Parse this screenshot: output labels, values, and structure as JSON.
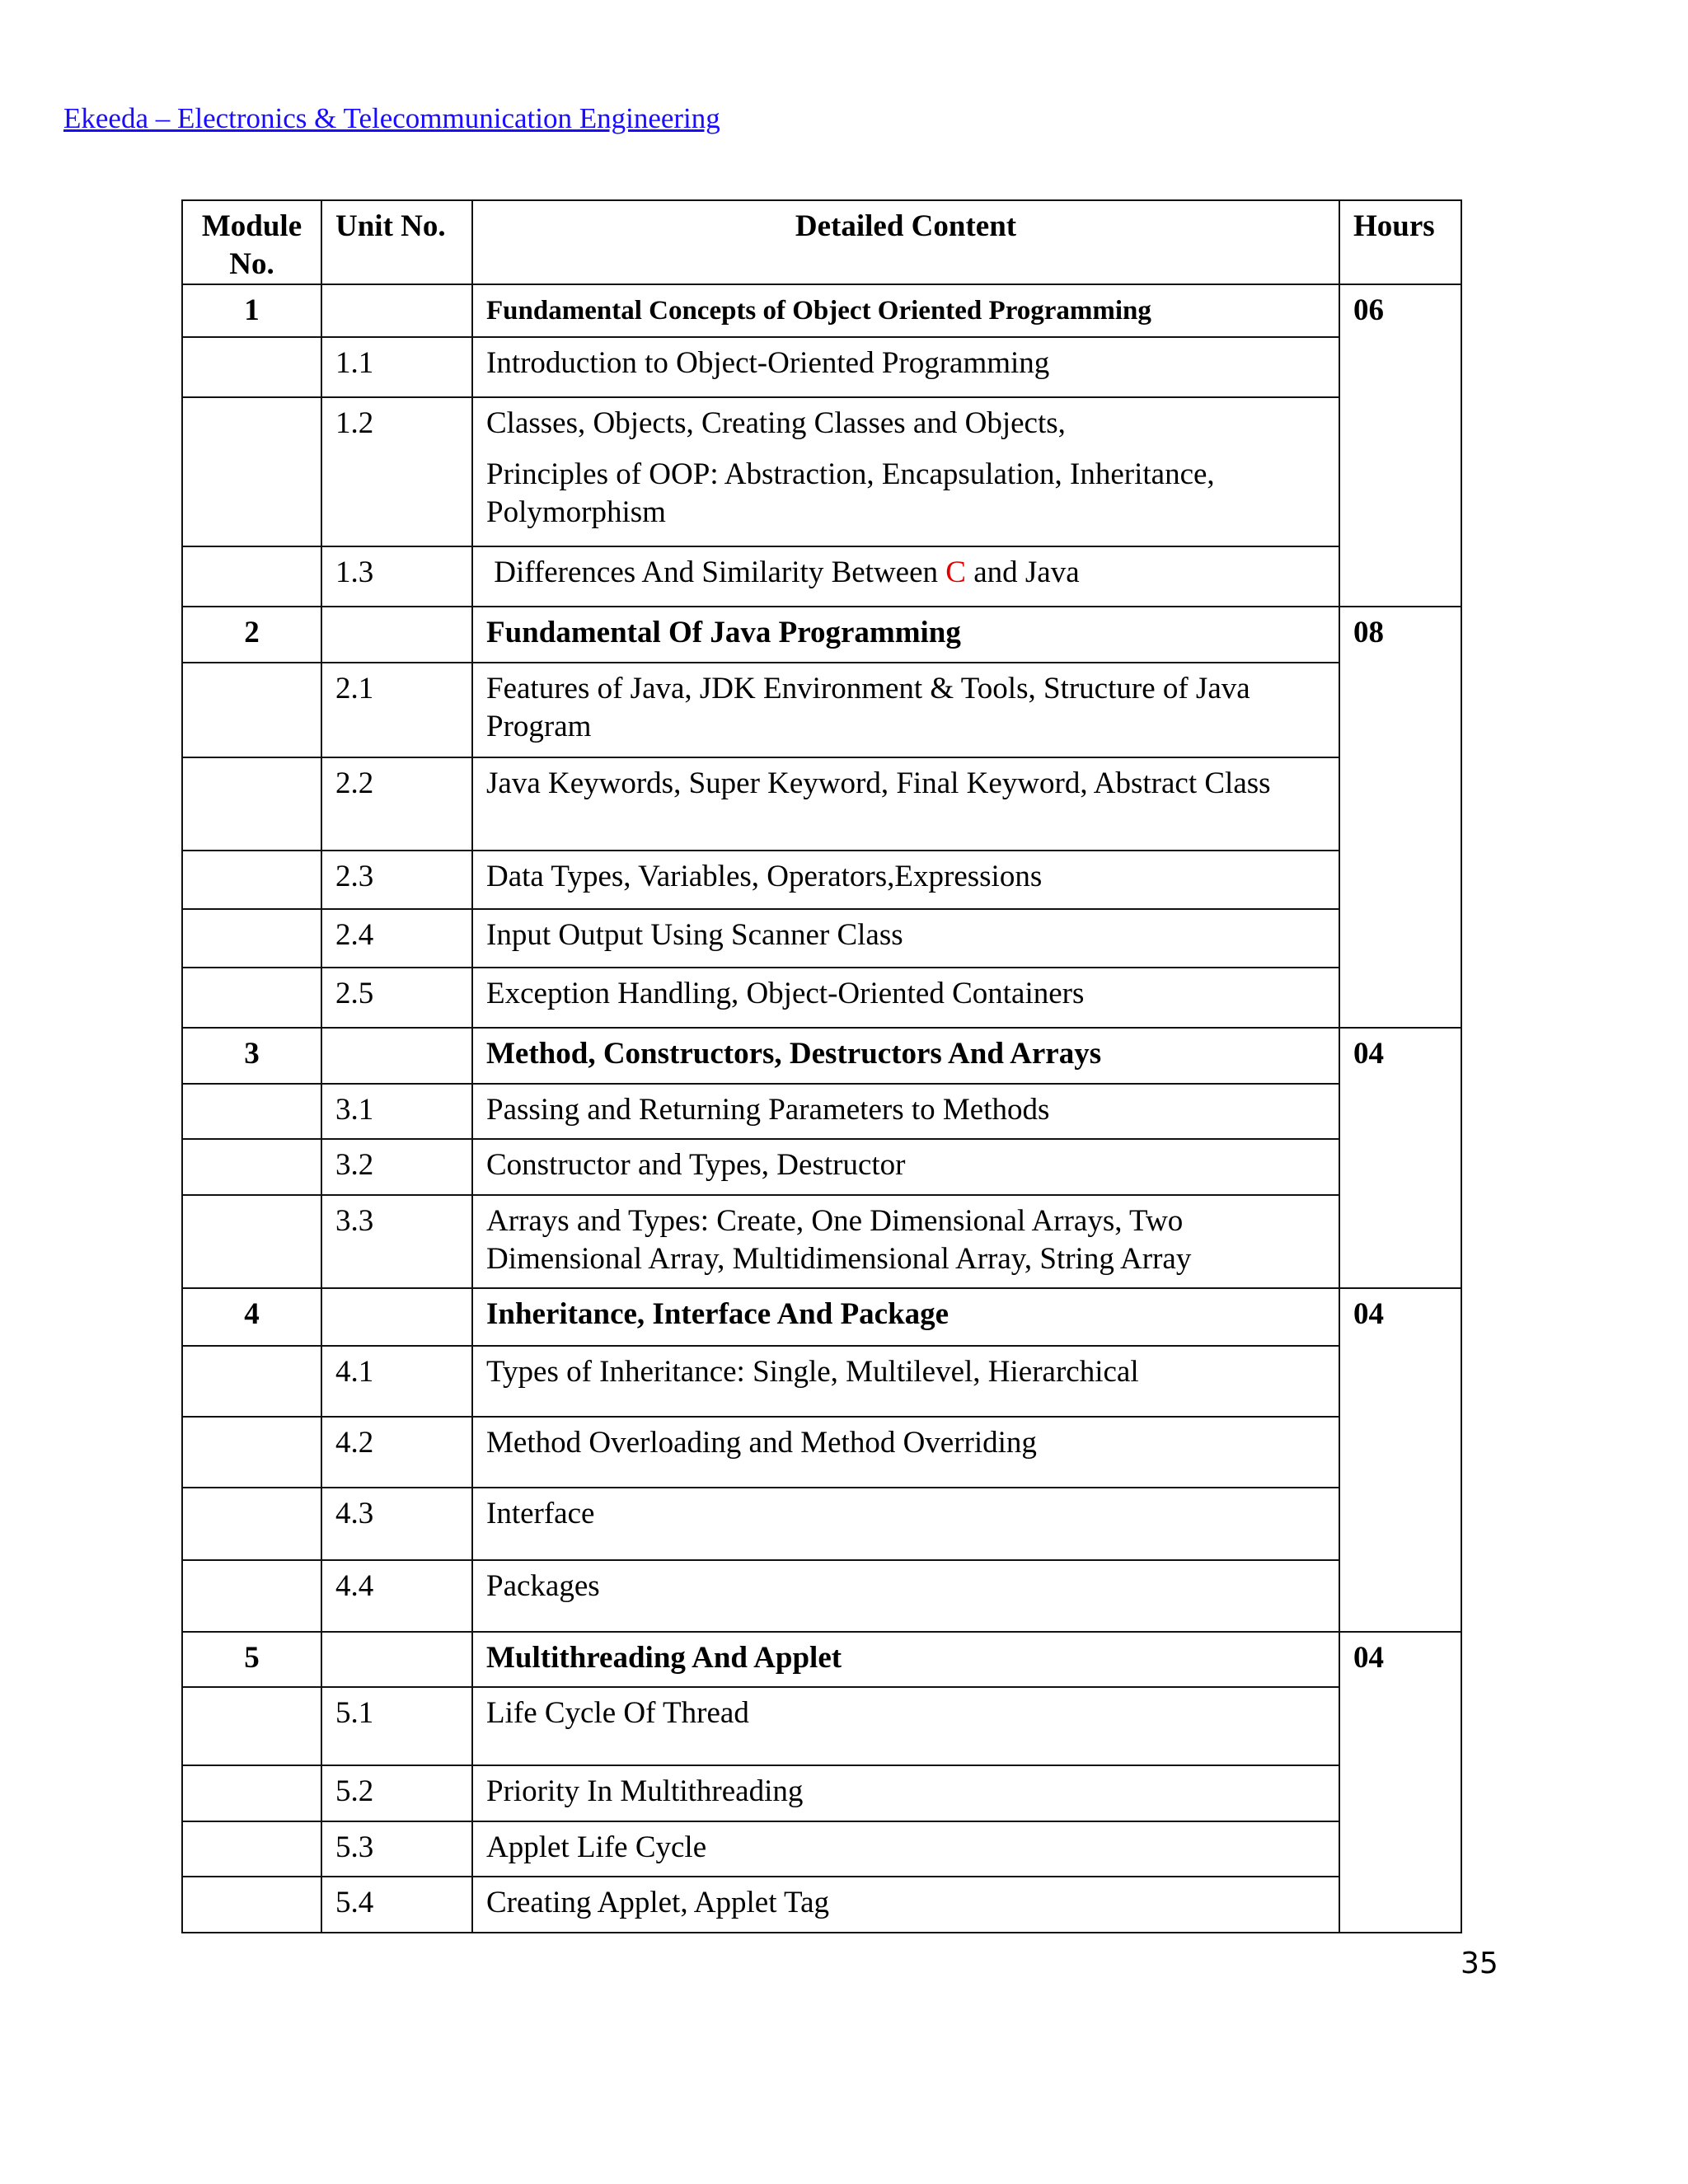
{
  "header": {
    "link_text": "Ekeeda – Electronics & Telecommunication Engineering",
    "link_color": "#1a0dff"
  },
  "table": {
    "columns": [
      "Module No.",
      "Unit No.",
      "Detailed Content",
      "Hours"
    ],
    "modules": [
      {
        "no": "1",
        "title": "Fundamental Concepts of Object Oriented Programming",
        "hours": "06",
        "units": [
          {
            "no": "1.1",
            "text": "Introduction to Object-Oriented Programming"
          },
          {
            "no": "1.2",
            "text": "Classes, Objects, Creating Classes and Objects,",
            "text2": "Principles of OOP: Abstraction, Encapsulation, Inheritance, Polymorphism"
          },
          {
            "no": "1.3",
            "segments": [
              " Differences And Similarity Between ",
              "C",
              " and Java"
            ],
            "highlight_color": "#e00000"
          }
        ]
      },
      {
        "no": "2",
        "title": "Fundamental Of Java Programming",
        "hours": "08",
        "units": [
          {
            "no": "2.1",
            "text": "Features of Java, JDK Environment & Tools, Structure  of Java Program"
          },
          {
            "no": "2.2",
            "text": "Java Keywords, Super Keyword, Final Keyword, Abstract Class"
          },
          {
            "no": "2.3",
            "text": "Data Types, Variables, Operators,Expressions"
          },
          {
            "no": "2.4",
            "text": "Input Output Using Scanner Class"
          },
          {
            "no": "2.5",
            "text": "Exception Handling, Object-Oriented Containers"
          }
        ]
      },
      {
        "no": "3",
        "title": "Method, Constructors, Destructors And Arrays",
        "hours": "04",
        "units": [
          {
            "no": "3.1",
            "text": "Passing and Returning Parameters to Methods"
          },
          {
            "no": "3.2",
            "text": "Constructor and Types, Destructor"
          },
          {
            "no": "3.3",
            "text": "Arrays and Types: Create, One Dimensional Arrays, Two Dimensional Array, Multidimensional Array, String Array"
          }
        ]
      },
      {
        "no": "4",
        "title": "Inheritance, Interface And Package",
        "hours": "04",
        "units": [
          {
            "no": "4.1",
            "text": "Types of Inheritance: Single, Multilevel, Hierarchical"
          },
          {
            "no": "4.2",
            "text": "Method Overloading and Method Overriding"
          },
          {
            "no": "4.3",
            "text": "Interface"
          },
          {
            "no": "4.4",
            "text": "Packages"
          }
        ]
      },
      {
        "no": "5",
        "title": "Multithreading And Applet",
        "hours": "04",
        "units": [
          {
            "no": "5.1",
            "text": "Life Cycle Of Thread"
          },
          {
            "no": "5.2",
            "text": "Priority In Multithreading"
          },
          {
            "no": "5.3",
            "text": "Applet Life Cycle"
          },
          {
            "no": "5.4",
            "text": "Creating Applet, Applet Tag"
          }
        ]
      }
    ]
  },
  "page_number": "35"
}
